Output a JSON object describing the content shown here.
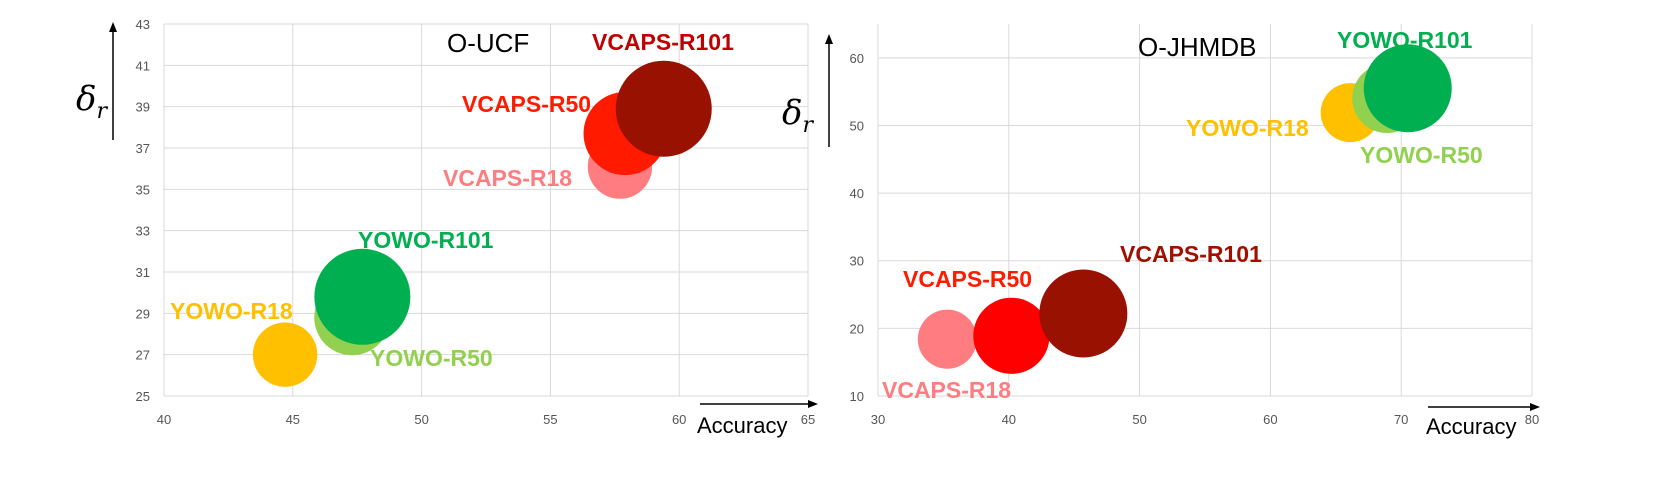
{
  "chart_data": [
    {
      "type": "scatter",
      "title": "O-UCF",
      "xlabel": "Accuracy",
      "ylabel": "δ",
      "ylabel_sub": "r",
      "xlim": [
        40,
        65
      ],
      "ylim": [
        25,
        43
      ],
      "xticks": [
        40,
        45,
        50,
        55,
        60,
        65
      ],
      "yticks": [
        25,
        27,
        29,
        31,
        33,
        35,
        37,
        39,
        41,
        43
      ],
      "grid": true,
      "points": [
        {
          "label": "YOWO-R18",
          "x": 44.7,
          "y": 27.0,
          "size": 0.45,
          "color": "#ffc000",
          "label_color": "#ffc000"
        },
        {
          "label": "YOWO-R50",
          "x": 47.3,
          "y": 28.8,
          "size": 0.62,
          "color": "#92d050",
          "label_color": "#92d050"
        },
        {
          "label": "YOWO-R101",
          "x": 47.7,
          "y": 29.8,
          "size": 1.0,
          "color": "#00b050",
          "label_color": "#00b050"
        },
        {
          "label": "VCAPS-R18",
          "x": 57.7,
          "y": 36.1,
          "size": 0.45,
          "color": "#ff7c80",
          "label_color": "#ff7c80"
        },
        {
          "label": "VCAPS-R50",
          "x": 57.9,
          "y": 37.7,
          "size": 0.75,
          "color": "#ff1a00",
          "label_color": "#ff1a00"
        },
        {
          "label": "VCAPS-R101",
          "x": 59.4,
          "y": 38.9,
          "size": 1.0,
          "color": "#991100",
          "label_color": "#c00000"
        }
      ]
    },
    {
      "type": "scatter",
      "title": "O-JHMDB",
      "xlabel": "Accuracy",
      "ylabel": "δ",
      "ylabel_sub": "r",
      "xlim": [
        30,
        80
      ],
      "ylim": [
        10,
        65
      ],
      "xticks": [
        30,
        40,
        50,
        60,
        70,
        80
      ],
      "yticks": [
        10,
        20,
        30,
        40,
        50,
        60
      ],
      "grid": true,
      "points": [
        {
          "label": "VCAPS-R18",
          "x": 35.3,
          "y": 18.4,
          "size": 0.45,
          "color": "#ff7c80",
          "label_color": "#ff7c80"
        },
        {
          "label": "VCAPS-R50",
          "x": 40.2,
          "y": 18.9,
          "size": 0.75,
          "color": "#ff0000",
          "label_color": "#ff1a00"
        },
        {
          "label": "VCAPS-R101",
          "x": 45.7,
          "y": 22.2,
          "size": 1.0,
          "color": "#991100",
          "label_color": "#a01000"
        },
        {
          "label": "YOWO-R18",
          "x": 66.1,
          "y": 51.9,
          "size": 0.45,
          "color": "#ffc000",
          "label_color": "#ffc000"
        },
        {
          "label": "YOWO-R50",
          "x": 68.9,
          "y": 54.0,
          "size": 0.62,
          "color": "#92d050",
          "label_color": "#92d050"
        },
        {
          "label": "YOWO-R101",
          "x": 70.5,
          "y": 55.5,
          "size": 1.0,
          "color": "#00b050",
          "label_color": "#00b050"
        }
      ]
    }
  ]
}
